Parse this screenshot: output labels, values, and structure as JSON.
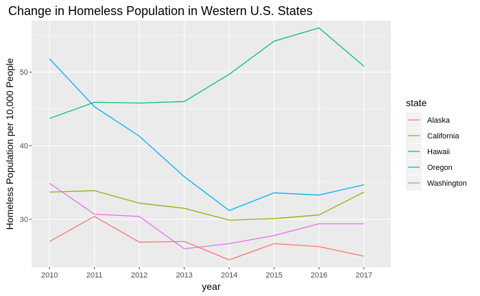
{
  "chart_data": {
    "type": "line",
    "title": "Change in Homeless Population in Western U.S. States",
    "xlabel": "year",
    "ylabel": "Homeless Population per 10,000 People",
    "x": [
      2010,
      2011,
      2012,
      2013,
      2014,
      2015,
      2016,
      2017
    ],
    "xlim": [
      2009.6,
      2017.6
    ],
    "ylim": [
      23.5,
      57.0
    ],
    "yticks": [
      30,
      40,
      50
    ],
    "grid": true,
    "legend_title": "state",
    "legend_position": "right",
    "series": [
      {
        "name": "Alaska",
        "color": "#F8766D",
        "values": [
          27.0,
          30.4,
          26.9,
          27.0,
          24.5,
          26.7,
          26.3,
          25.0
        ]
      },
      {
        "name": "California",
        "color": "#A3A500",
        "values": [
          33.7,
          33.9,
          32.2,
          31.5,
          29.9,
          30.1,
          30.6,
          33.7
        ]
      },
      {
        "name": "Hawaii",
        "color": "#00BF7D",
        "values": [
          43.7,
          45.9,
          45.8,
          46.0,
          49.7,
          54.2,
          56.0,
          50.8
        ]
      },
      {
        "name": "Oregon",
        "color": "#00B0F6",
        "values": [
          51.8,
          45.3,
          41.3,
          35.8,
          31.2,
          33.6,
          33.3,
          34.7
        ]
      },
      {
        "name": "Washington",
        "color": "#E76BF3",
        "values": [
          34.9,
          30.7,
          30.4,
          26.0,
          26.7,
          27.8,
          29.4,
          29.4
        ]
      }
    ]
  }
}
